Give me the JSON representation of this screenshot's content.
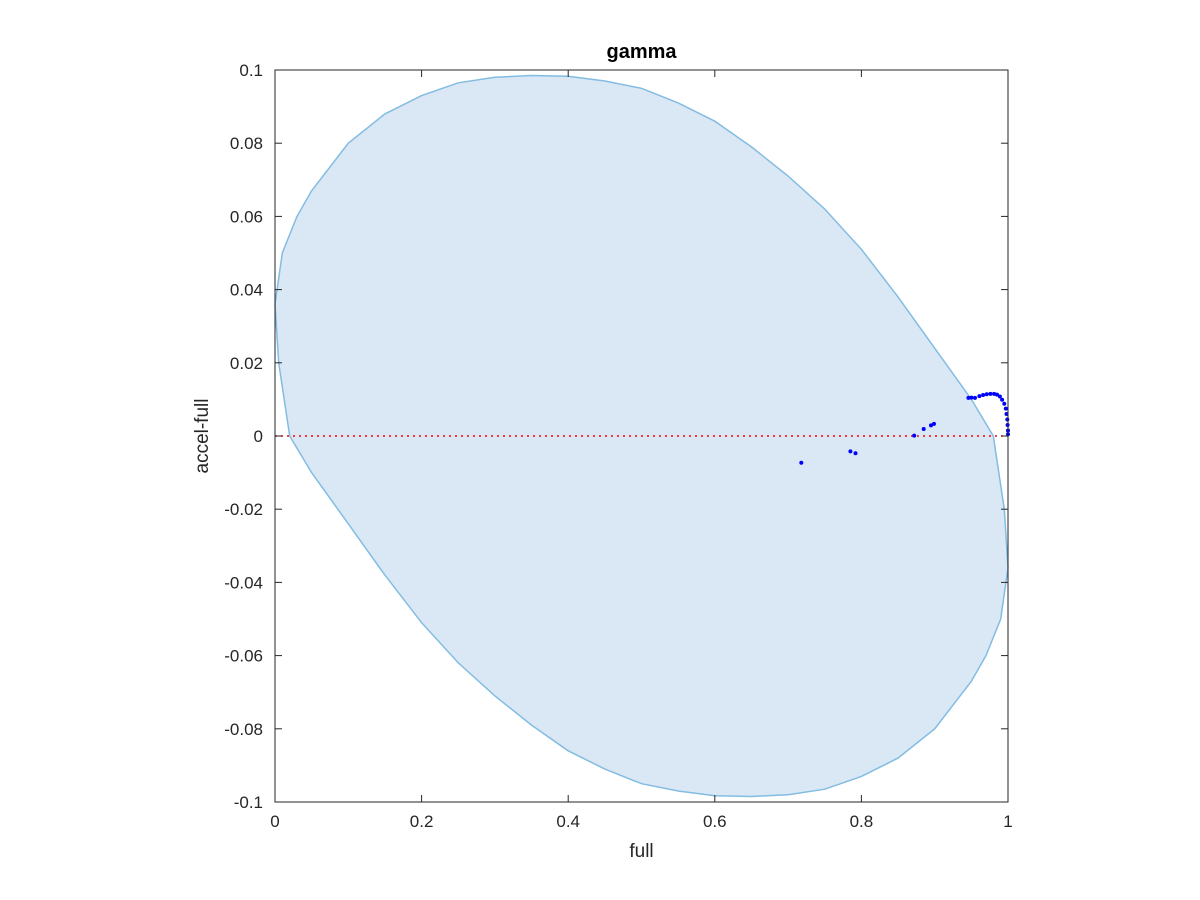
{
  "chart_data": {
    "type": "scatter",
    "title": "gamma",
    "xlabel": "full",
    "ylabel": "accel-full",
    "xlim": [
      0,
      1
    ],
    "ylim": [
      -0.1,
      0.1
    ],
    "xticks": [
      0,
      0.2,
      0.4,
      0.6,
      0.8,
      1
    ],
    "xtick_labels": [
      "0",
      "0.2",
      "0.4",
      "0.6",
      "0.8",
      "1"
    ],
    "yticks": [
      0.1,
      0.08,
      0.06,
      0.04,
      0.02,
      0,
      -0.02,
      -0.04,
      -0.06,
      -0.08,
      -0.1
    ],
    "ytick_labels": [
      "0.1",
      "0.08",
      "0.06",
      "0.04",
      "0.02",
      "0",
      "-0.02",
      "-0.04",
      "-0.06",
      "-0.08",
      "-0.1"
    ],
    "grid": false,
    "reference_line": {
      "y": 0,
      "style": "dotted",
      "color": "#ff0000"
    },
    "region": {
      "shape": "ellipse",
      "fill": "#d9e8f4",
      "stroke": "#83bce2",
      "boundary": [
        [
          0.0,
          0.036
        ],
        [
          0.01,
          0.05
        ],
        [
          0.03,
          0.06
        ],
        [
          0.05,
          0.067
        ],
        [
          0.1,
          0.08
        ],
        [
          0.15,
          0.088
        ],
        [
          0.2,
          0.093
        ],
        [
          0.25,
          0.0965
        ],
        [
          0.3,
          0.098
        ],
        [
          0.35,
          0.0985
        ],
        [
          0.4,
          0.0983
        ],
        [
          0.45,
          0.097
        ],
        [
          0.5,
          0.095
        ],
        [
          0.55,
          0.091
        ],
        [
          0.6,
          0.086
        ],
        [
          0.65,
          0.079
        ],
        [
          0.7,
          0.071
        ],
        [
          0.75,
          0.062
        ],
        [
          0.8,
          0.051
        ],
        [
          0.85,
          0.038
        ],
        [
          0.9,
          0.024
        ],
        [
          0.95,
          0.01
        ],
        [
          0.98,
          0.0
        ],
        [
          0.995,
          -0.02
        ],
        [
          1.0,
          -0.036
        ],
        [
          0.99,
          -0.05
        ],
        [
          0.97,
          -0.06
        ],
        [
          0.95,
          -0.067
        ],
        [
          0.9,
          -0.08
        ],
        [
          0.85,
          -0.088
        ],
        [
          0.8,
          -0.093
        ],
        [
          0.75,
          -0.0965
        ],
        [
          0.7,
          -0.098
        ],
        [
          0.65,
          -0.0985
        ],
        [
          0.6,
          -0.0983
        ],
        [
          0.55,
          -0.097
        ],
        [
          0.5,
          -0.095
        ],
        [
          0.45,
          -0.091
        ],
        [
          0.4,
          -0.086
        ],
        [
          0.35,
          -0.079
        ],
        [
          0.3,
          -0.071
        ],
        [
          0.25,
          -0.062
        ],
        [
          0.2,
          -0.051
        ],
        [
          0.15,
          -0.038
        ],
        [
          0.1,
          -0.024
        ],
        [
          0.05,
          -0.01
        ],
        [
          0.02,
          0.0
        ],
        [
          0.005,
          0.02
        ]
      ]
    },
    "series": [
      {
        "color": "#0000ff",
        "points": [
          [
            0.718,
            -0.0073
          ],
          [
            0.785,
            -0.0042
          ],
          [
            0.792,
            -0.0047
          ],
          [
            0.872,
            0.0001
          ],
          [
            0.885,
            0.0019
          ],
          [
            0.895,
            0.0029
          ],
          [
            0.899,
            0.0033
          ],
          [
            0.946,
            0.0104
          ],
          [
            0.95,
            0.0105
          ],
          [
            0.955,
            0.0104
          ],
          [
            0.961,
            0.0109
          ],
          [
            0.966,
            0.0112
          ],
          [
            0.971,
            0.0114
          ],
          [
            0.976,
            0.0115
          ],
          [
            0.981,
            0.0115
          ],
          [
            0.985,
            0.0113
          ],
          [
            0.989,
            0.0108
          ],
          [
            0.992,
            0.0099
          ],
          [
            0.995,
            0.0088
          ],
          [
            0.997,
            0.0075
          ],
          [
            0.998,
            0.006
          ],
          [
            0.999,
            0.0045
          ],
          [
            0.9995,
            0.003
          ],
          [
            1.0,
            0.0015
          ],
          [
            1.0,
            0.0005
          ]
        ]
      }
    ]
  }
}
